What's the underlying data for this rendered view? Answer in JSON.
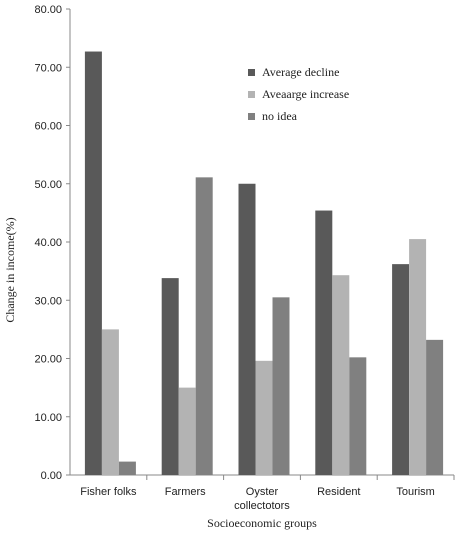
{
  "chart_data": {
    "type": "bar",
    "categories": [
      [
        "Fisher folks"
      ],
      [
        "Farmers"
      ],
      [
        "Oyster",
        "collectotors"
      ],
      [
        "Resident"
      ],
      [
        "Tourism"
      ]
    ],
    "series": [
      {
        "name": "Average decline",
        "color": "#595959",
        "values": [
          72.7,
          33.8,
          50.0,
          45.4,
          36.2
        ]
      },
      {
        "name": "Aveaarge increase",
        "color": "#b3b3b3",
        "values": [
          25.0,
          15.0,
          19.6,
          34.3,
          40.5
        ]
      },
      {
        "name": "no idea",
        "color": "#808080",
        "values": [
          2.3,
          51.1,
          30.5,
          20.2,
          23.2
        ]
      }
    ],
    "yticks": [
      "0.00",
      "10.00",
      "20.00",
      "30.00",
      "40.00",
      "50.00",
      "60.00",
      "70.00",
      "80.00"
    ],
    "ylim": [
      0,
      80
    ],
    "xlabel": "Socioeconomic groups",
    "ylabel": "Change in income(%)",
    "legend_position": "top-right"
  }
}
